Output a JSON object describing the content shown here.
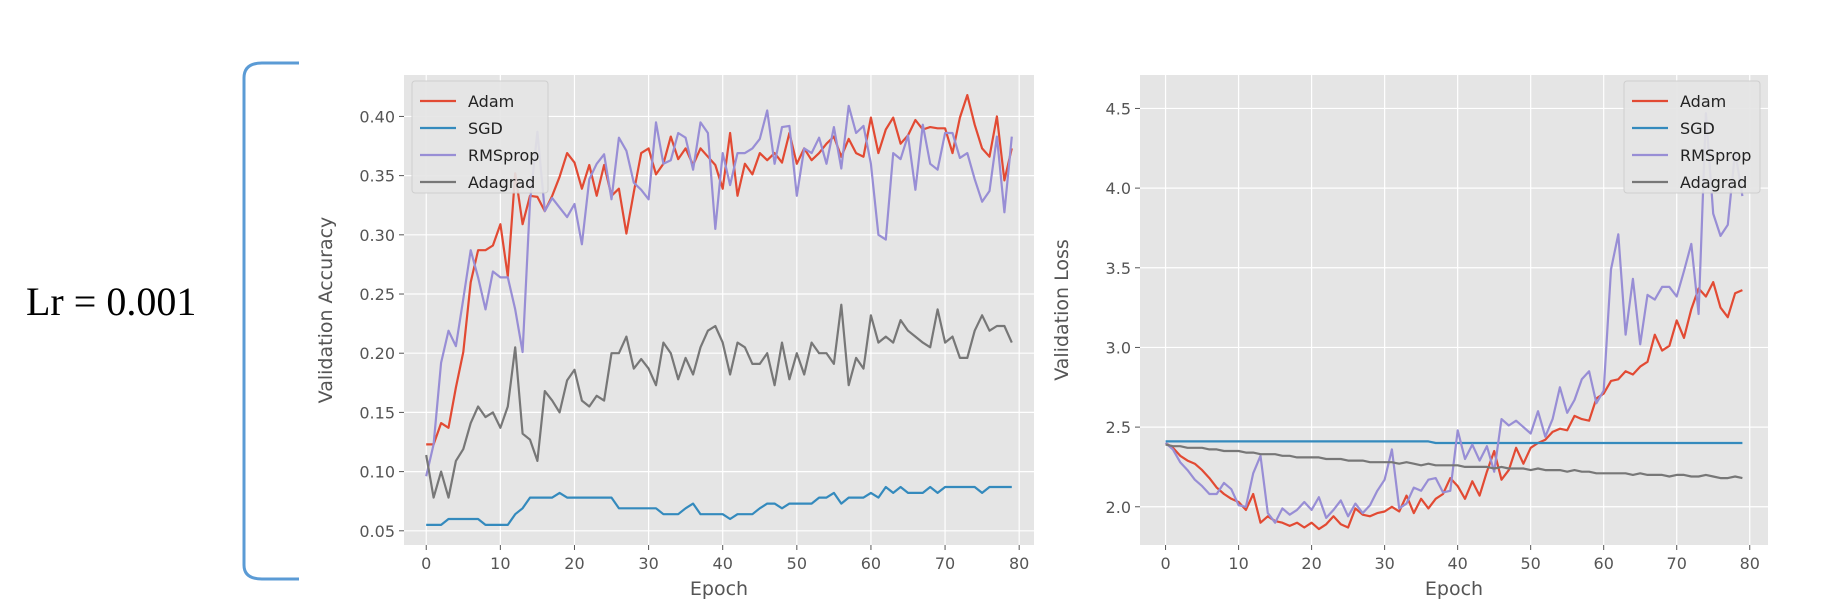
{
  "side_label": "Lr = 0.001",
  "chart_data": [
    {
      "type": "line",
      "xlabel": "Epoch",
      "ylabel": "Validation Accuracy",
      "xlim": [
        -3,
        82
      ],
      "ylim": [
        0.038,
        0.435
      ],
      "xticks": [
        0,
        10,
        20,
        30,
        40,
        50,
        60,
        70,
        80
      ],
      "yticks": [
        0.05,
        0.1,
        0.15,
        0.2,
        0.25,
        0.3,
        0.35,
        0.4
      ],
      "grid": true,
      "legend_position": "top-left",
      "x": [
        0,
        1,
        2,
        3,
        4,
        5,
        6,
        7,
        8,
        9,
        10,
        11,
        12,
        13,
        14,
        15,
        16,
        17,
        18,
        19,
        20,
        21,
        22,
        23,
        24,
        25,
        26,
        27,
        28,
        29,
        30,
        31,
        32,
        33,
        34,
        35,
        36,
        37,
        38,
        39,
        40,
        41,
        42,
        43,
        44,
        45,
        46,
        47,
        48,
        49,
        50,
        51,
        52,
        53,
        54,
        55,
        56,
        57,
        58,
        59,
        60,
        61,
        62,
        63,
        64,
        65,
        66,
        67,
        68,
        69,
        70,
        71,
        72,
        73,
        74,
        75,
        76,
        77,
        78,
        79
      ],
      "series": [
        {
          "name": "Adam",
          "color": "#E24A33",
          "values": [
            0.123,
            0.123,
            0.141,
            0.137,
            0.171,
            0.201,
            0.26,
            0.287,
            0.287,
            0.291,
            0.309,
            0.265,
            0.352,
            0.309,
            0.333,
            0.332,
            0.32,
            0.333,
            0.349,
            0.369,
            0.361,
            0.339,
            0.359,
            0.333,
            0.359,
            0.333,
            0.339,
            0.301,
            0.336,
            0.369,
            0.373,
            0.351,
            0.36,
            0.383,
            0.364,
            0.373,
            0.359,
            0.373,
            0.366,
            0.359,
            0.339,
            0.386,
            0.333,
            0.36,
            0.351,
            0.369,
            0.363,
            0.369,
            0.361,
            0.386,
            0.36,
            0.373,
            0.363,
            0.369,
            0.377,
            0.383,
            0.366,
            0.381,
            0.369,
            0.366,
            0.399,
            0.369,
            0.389,
            0.399,
            0.377,
            0.384,
            0.397,
            0.389,
            0.391,
            0.39,
            0.39,
            0.369,
            0.399,
            0.418,
            0.393,
            0.373,
            0.366,
            0.4,
            0.346,
            0.373
          ]
        },
        {
          "name": "SGD",
          "color": "#348ABD",
          "values": [
            0.055,
            0.055,
            0.055,
            0.06,
            0.06,
            0.06,
            0.06,
            0.06,
            0.055,
            0.055,
            0.055,
            0.055,
            0.064,
            0.069,
            0.078,
            0.078,
            0.078,
            0.078,
            0.082,
            0.078,
            0.078,
            0.078,
            0.078,
            0.078,
            0.078,
            0.078,
            0.069,
            0.069,
            0.069,
            0.069,
            0.069,
            0.069,
            0.064,
            0.064,
            0.064,
            0.069,
            0.073,
            0.064,
            0.064,
            0.064,
            0.064,
            0.06,
            0.064,
            0.064,
            0.064,
            0.069,
            0.073,
            0.073,
            0.069,
            0.073,
            0.073,
            0.073,
            0.073,
            0.078,
            0.078,
            0.082,
            0.073,
            0.078,
            0.078,
            0.078,
            0.082,
            0.078,
            0.087,
            0.082,
            0.087,
            0.082,
            0.082,
            0.082,
            0.087,
            0.082,
            0.087,
            0.087,
            0.087,
            0.087,
            0.087,
            0.082,
            0.087,
            0.087,
            0.087,
            0.087
          ]
        },
        {
          "name": "RMSprop",
          "color": "#988ED5",
          "values": [
            0.096,
            0.123,
            0.192,
            0.219,
            0.206,
            0.246,
            0.287,
            0.264,
            0.237,
            0.269,
            0.264,
            0.264,
            0.237,
            0.201,
            0.328,
            0.387,
            0.32,
            0.331,
            0.323,
            0.315,
            0.326,
            0.292,
            0.347,
            0.36,
            0.368,
            0.33,
            0.382,
            0.371,
            0.344,
            0.338,
            0.33,
            0.395,
            0.36,
            0.363,
            0.386,
            0.382,
            0.355,
            0.395,
            0.386,
            0.305,
            0.369,
            0.342,
            0.369,
            0.369,
            0.373,
            0.381,
            0.405,
            0.36,
            0.391,
            0.392,
            0.333,
            0.373,
            0.369,
            0.382,
            0.36,
            0.391,
            0.356,
            0.409,
            0.386,
            0.392,
            0.36,
            0.3,
            0.296,
            0.369,
            0.364,
            0.384,
            0.338,
            0.393,
            0.36,
            0.355,
            0.386,
            0.386,
            0.365,
            0.369,
            0.347,
            0.328,
            0.337,
            0.383,
            0.319,
            0.383
          ]
        },
        {
          "name": "Adagrad",
          "color": "#777777",
          "values": [
            0.114,
            0.078,
            0.1,
            0.078,
            0.109,
            0.119,
            0.141,
            0.155,
            0.146,
            0.15,
            0.137,
            0.155,
            0.205,
            0.132,
            0.127,
            0.109,
            0.168,
            0.16,
            0.15,
            0.177,
            0.186,
            0.16,
            0.155,
            0.164,
            0.16,
            0.2,
            0.2,
            0.214,
            0.187,
            0.195,
            0.187,
            0.173,
            0.209,
            0.2,
            0.178,
            0.196,
            0.182,
            0.205,
            0.219,
            0.223,
            0.209,
            0.182,
            0.209,
            0.205,
            0.191,
            0.191,
            0.2,
            0.173,
            0.209,
            0.178,
            0.2,
            0.182,
            0.209,
            0.2,
            0.2,
            0.191,
            0.241,
            0.173,
            0.196,
            0.187,
            0.232,
            0.209,
            0.214,
            0.209,
            0.228,
            0.219,
            0.214,
            0.209,
            0.205,
            0.237,
            0.209,
            0.214,
            0.196,
            0.196,
            0.219,
            0.232,
            0.219,
            0.223,
            0.223,
            0.209
          ]
        }
      ]
    },
    {
      "type": "line",
      "xlabel": "Epoch",
      "ylabel": "Validation Loss",
      "xlim": [
        -3.5,
        82.5
      ],
      "ylim": [
        1.76,
        4.71
      ],
      "xticks": [
        0,
        10,
        20,
        30,
        40,
        50,
        60,
        70,
        80
      ],
      "yticks": [
        2.0,
        2.5,
        3.0,
        3.5,
        4.0,
        4.5
      ],
      "grid": true,
      "legend_position": "top-right",
      "x": [
        0,
        1,
        2,
        3,
        4,
        5,
        6,
        7,
        8,
        9,
        10,
        11,
        12,
        13,
        14,
        15,
        16,
        17,
        18,
        19,
        20,
        21,
        22,
        23,
        24,
        25,
        26,
        27,
        28,
        29,
        30,
        31,
        32,
        33,
        34,
        35,
        36,
        37,
        38,
        39,
        40,
        41,
        42,
        43,
        44,
        45,
        46,
        47,
        48,
        49,
        50,
        51,
        52,
        53,
        54,
        55,
        56,
        57,
        58,
        59,
        60,
        61,
        62,
        63,
        64,
        65,
        66,
        67,
        68,
        69,
        70,
        71,
        72,
        73,
        74,
        75,
        76,
        77,
        78,
        79
      ],
      "series": [
        {
          "name": "Adam",
          "color": "#E24A33",
          "values": [
            2.4,
            2.37,
            2.32,
            2.29,
            2.27,
            2.23,
            2.18,
            2.12,
            2.08,
            2.05,
            2.03,
            1.98,
            2.08,
            1.9,
            1.94,
            1.91,
            1.9,
            1.88,
            1.9,
            1.87,
            1.9,
            1.86,
            1.89,
            1.94,
            1.89,
            1.87,
            1.99,
            1.95,
            1.94,
            1.96,
            1.97,
            2.0,
            1.97,
            2.07,
            1.96,
            2.05,
            1.99,
            2.05,
            2.08,
            2.18,
            2.13,
            2.05,
            2.16,
            2.07,
            2.22,
            2.35,
            2.17,
            2.23,
            2.37,
            2.27,
            2.37,
            2.4,
            2.42,
            2.47,
            2.49,
            2.48,
            2.57,
            2.55,
            2.54,
            2.68,
            2.71,
            2.79,
            2.8,
            2.85,
            2.83,
            2.88,
            2.91,
            3.08,
            2.98,
            3.01,
            3.17,
            3.06,
            3.24,
            3.37,
            3.32,
            3.41,
            3.25,
            3.19,
            3.34,
            3.36
          ]
        },
        {
          "name": "SGD",
          "color": "#348ABD",
          "values": [
            2.41,
            2.41,
            2.41,
            2.41,
            2.41,
            2.41,
            2.41,
            2.41,
            2.41,
            2.41,
            2.41,
            2.41,
            2.41,
            2.41,
            2.41,
            2.41,
            2.41,
            2.41,
            2.41,
            2.41,
            2.41,
            2.41,
            2.41,
            2.41,
            2.41,
            2.41,
            2.41,
            2.41,
            2.41,
            2.41,
            2.41,
            2.41,
            2.41,
            2.41,
            2.41,
            2.41,
            2.41,
            2.4,
            2.4,
            2.4,
            2.4,
            2.4,
            2.4,
            2.4,
            2.4,
            2.4,
            2.4,
            2.4,
            2.4,
            2.4,
            2.4,
            2.4,
            2.4,
            2.4,
            2.4,
            2.4,
            2.4,
            2.4,
            2.4,
            2.4,
            2.4,
            2.4,
            2.4,
            2.4,
            2.4,
            2.4,
            2.4,
            2.4,
            2.4,
            2.4,
            2.4,
            2.4,
            2.4,
            2.4,
            2.4,
            2.4,
            2.4,
            2.4,
            2.4,
            2.4
          ]
        },
        {
          "name": "RMSprop",
          "color": "#988ED5",
          "values": [
            2.4,
            2.36,
            2.28,
            2.23,
            2.17,
            2.13,
            2.08,
            2.08,
            2.15,
            2.11,
            2.01,
            2.0,
            2.21,
            2.32,
            1.96,
            1.9,
            1.99,
            1.95,
            1.98,
            2.03,
            1.98,
            2.06,
            1.93,
            1.98,
            2.04,
            1.94,
            2.02,
            1.96,
            2.01,
            2.1,
            2.17,
            2.36,
            1.99,
            2.02,
            2.12,
            2.1,
            2.17,
            2.18,
            2.09,
            2.1,
            2.48,
            2.3,
            2.39,
            2.29,
            2.38,
            2.22,
            2.55,
            2.51,
            2.54,
            2.5,
            2.46,
            2.6,
            2.44,
            2.55,
            2.75,
            2.59,
            2.67,
            2.8,
            2.85,
            2.65,
            2.73,
            3.49,
            3.71,
            3.08,
            3.43,
            3.02,
            3.33,
            3.3,
            3.38,
            3.38,
            3.32,
            3.48,
            3.65,
            3.21,
            4.47,
            3.84,
            3.7,
            3.77,
            4.23,
            3.95
          ]
        },
        {
          "name": "Adagrad",
          "color": "#777777",
          "values": [
            2.39,
            2.38,
            2.38,
            2.37,
            2.37,
            2.37,
            2.36,
            2.36,
            2.35,
            2.35,
            2.35,
            2.34,
            2.34,
            2.33,
            2.33,
            2.33,
            2.32,
            2.32,
            2.31,
            2.31,
            2.31,
            2.31,
            2.3,
            2.3,
            2.3,
            2.29,
            2.29,
            2.29,
            2.28,
            2.28,
            2.28,
            2.28,
            2.27,
            2.28,
            2.27,
            2.26,
            2.27,
            2.26,
            2.26,
            2.26,
            2.26,
            2.25,
            2.25,
            2.25,
            2.25,
            2.24,
            2.25,
            2.24,
            2.24,
            2.24,
            2.23,
            2.24,
            2.23,
            2.23,
            2.23,
            2.22,
            2.23,
            2.22,
            2.22,
            2.21,
            2.21,
            2.21,
            2.21,
            2.21,
            2.2,
            2.21,
            2.2,
            2.2,
            2.2,
            2.19,
            2.2,
            2.2,
            2.19,
            2.19,
            2.2,
            2.19,
            2.18,
            2.18,
            2.19,
            2.18
          ]
        }
      ]
    }
  ]
}
